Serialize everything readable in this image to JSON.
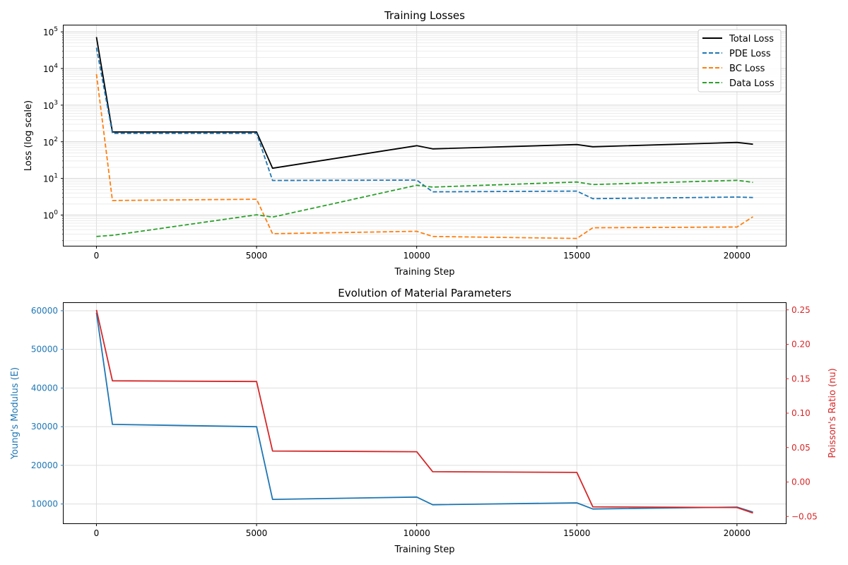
{
  "chart_data": [
    {
      "type": "line",
      "title": "Training Losses",
      "xlabel": "Training Step",
      "ylabel": "Loss (log scale)",
      "yscale": "log",
      "xlim": [
        -1025,
        21525
      ],
      "ylim": [
        0.145,
        150000
      ],
      "grid": "major and minor on both axes",
      "legend_position": "upper-right",
      "x": [
        0,
        500,
        5000,
        5500,
        10000,
        10500,
        15000,
        15500,
        20000,
        20500
      ],
      "xticks": [
        0,
        5000,
        10000,
        15000,
        20000
      ],
      "xtick_labels": [
        "0",
        "5000",
        "10000",
        "15000",
        "20000"
      ],
      "yticks": [
        1,
        10,
        100,
        1000,
        10000,
        100000
      ],
      "ytick_labels": [
        {
          "base": "10",
          "exp": "0"
        },
        {
          "base": "10",
          "exp": "1"
        },
        {
          "base": "10",
          "exp": "2"
        },
        {
          "base": "10",
          "exp": "3"
        },
        {
          "base": "10",
          "exp": "4"
        },
        {
          "base": "10",
          "exp": "5"
        }
      ],
      "series": [
        {
          "name": "Total Loss",
          "color": "#000000",
          "dash": "solid",
          "values": [
            72000,
            185,
            185,
            19,
            78,
            64,
            84,
            73,
            96,
            86
          ]
        },
        {
          "name": "PDE Loss",
          "color": "#1f77b4",
          "dash": "dashed",
          "values": [
            37000,
            170,
            170,
            8.8,
            9.0,
            4.3,
            4.5,
            2.8,
            3.1,
            3.0
          ]
        },
        {
          "name": "BC Loss",
          "color": "#ff7f0e",
          "dash": "dashed",
          "values": [
            7000,
            2.5,
            2.7,
            0.31,
            0.36,
            0.26,
            0.23,
            0.45,
            0.47,
            0.9
          ]
        },
        {
          "name": "Data Loss",
          "color": "#2ca02c",
          "dash": "dashed",
          "values": [
            0.26,
            0.28,
            1.02,
            0.88,
            6.5,
            5.8,
            8.0,
            6.8,
            8.9,
            7.8
          ]
        }
      ]
    },
    {
      "type": "line",
      "title": "Evolution of Material Parameters",
      "xlabel": "Training Step",
      "xlim": [
        -1025,
        21525
      ],
      "grid": "major on left axis",
      "x": [
        0,
        500,
        5000,
        5500,
        10000,
        10500,
        15000,
        15500,
        20000,
        20500
      ],
      "xticks": [
        0,
        5000,
        10000,
        15000,
        20000
      ],
      "xtick_labels": [
        "0",
        "5000",
        "10000",
        "15000",
        "20000"
      ],
      "left_axis": {
        "label": "Young's Modulus (E)",
        "color": "#1f77b4",
        "ylim": [
          5000,
          62000
        ],
        "ticks": [
          10000,
          20000,
          30000,
          40000,
          50000,
          60000
        ],
        "tick_labels": [
          "10000",
          "20000",
          "30000",
          "40000",
          "50000",
          "60000"
        ]
      },
      "right_axis": {
        "label": "Poisson's Ratio (nu)",
        "color": "#d62728",
        "ylim": [
          -0.06,
          0.26
        ],
        "ticks": [
          -0.05,
          0.0,
          0.05,
          0.1,
          0.15,
          0.2,
          0.25
        ],
        "tick_labels": [
          "−0.05",
          "0.00",
          "0.05",
          "0.10",
          "0.15",
          "0.20",
          "0.25"
        ]
      },
      "series": [
        {
          "name": "Young's Modulus (E)",
          "axis": "left",
          "color": "#1f77b4",
          "values": [
            59500,
            30600,
            30000,
            11200,
            11800,
            9800,
            10300,
            8700,
            9200,
            7900
          ]
        },
        {
          "name": "Poisson's Ratio (nu)",
          "axis": "right",
          "color": "#d62728",
          "values": [
            0.25,
            0.147,
            0.146,
            0.045,
            0.044,
            0.015,
            0.014,
            -0.036,
            -0.037,
            -0.045
          ]
        }
      ]
    }
  ]
}
